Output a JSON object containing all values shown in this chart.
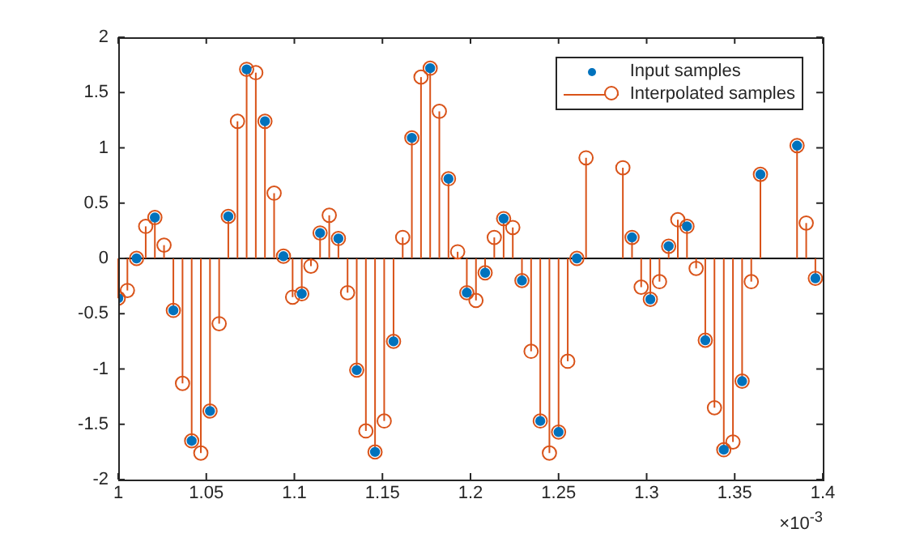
{
  "chart_data": {
    "type": "lollipop",
    "xlim": [
      1,
      1.4
    ],
    "xticks": [
      1,
      1.05,
      1.1,
      1.15,
      1.2,
      1.25,
      1.3,
      1.35,
      1.4
    ],
    "ylim": [
      -2,
      2
    ],
    "yticks": [
      -2,
      -1.5,
      -1,
      -0.5,
      0,
      0.5,
      1,
      1.5,
      2
    ],
    "legend": "top right",
    "marker": "circle",
    "annotations": [
      "×10$^{-3}$"
    ],
    "ref_lines": [
      {
        "axis": "y",
        "value": 0,
        "color": "#000000"
      }
    ],
    "series": [
      {
        "name": "Input samples",
        "type": "scatter",
        "color": "#0072bd",
        "x": [
          1,
          1.0104,
          1.0208,
          1.0313,
          1.0417,
          1.0521,
          1.0625,
          1.0729,
          1.0833,
          1.0938,
          1.1042,
          1.1146,
          1.125,
          1.1354,
          1.1458,
          1.1563,
          1.1667,
          1.1771,
          1.1875,
          1.1979,
          1.2083,
          1.2188,
          1.2292,
          1.2396,
          1.25,
          1.2604,
          1.2708,
          1.2813,
          1.2917,
          1.3021,
          1.3125,
          1.3229,
          1.3333,
          1.3438,
          1.3542,
          1.3646,
          1.375,
          1.3854,
          1.3958
        ],
        "values": [
          -0.36,
          0,
          0.37,
          -0.47,
          -1.65,
          -1.38,
          0.38,
          1.71,
          1.24,
          0.02,
          -0.32,
          0.23,
          0.18,
          -1.01,
          -1.75,
          -0.75,
          1.09,
          1.72,
          0.72,
          -0.31,
          -0.13,
          0.36,
          -0.2,
          -1.47,
          -1.57,
          0,
          null,
          null,
          0.19,
          -0.37,
          0.11,
          0.29,
          -0.74,
          -1.73,
          -1.11,
          0.76,
          null,
          1.02,
          -0.18
        ]
      },
      {
        "name": "Interpolated samples",
        "type": "lollipop",
        "color": "#d95319",
        "x": [
          1,
          1.0052,
          1.0104,
          1.0156,
          1.0208,
          1.026,
          1.0313,
          1.0365,
          1.0417,
          1.0469,
          1.0521,
          1.0573,
          1.0625,
          1.0677,
          1.0729,
          1.0781,
          1.0833,
          1.0885,
          1.0938,
          1.099,
          1.1042,
          1.1094,
          1.1146,
          1.1198,
          1.125,
          1.1302,
          1.1354,
          1.1406,
          1.1458,
          1.151,
          1.1563,
          1.1615,
          1.1667,
          1.1719,
          1.1771,
          1.1823,
          1.1875,
          1.1927,
          1.1979,
          1.2031,
          1.2083,
          1.2135,
          1.2188,
          1.224,
          1.2292,
          1.2344,
          1.2396,
          1.2448,
          1.25,
          1.2552,
          1.2604,
          1.2656,
          1.2708,
          1.276,
          1.2813,
          1.2865,
          1.2917,
          1.2969,
          1.3021,
          1.3073,
          1.3125,
          1.3177,
          1.3229,
          1.3281,
          1.3333,
          1.3385,
          1.3438,
          1.349,
          1.3542,
          1.3594,
          1.3646,
          1.3698,
          1.375,
          1.3802,
          1.3854,
          1.3906,
          1.3958
        ],
        "values": [
          -0.36,
          -0.29,
          0,
          0.29,
          0.37,
          0.12,
          -0.47,
          -1.13,
          -1.65,
          -1.76,
          -1.38,
          -0.59,
          0.38,
          1.24,
          1.71,
          1.68,
          1.24,
          0.59,
          0.02,
          -0.35,
          -0.32,
          -0.07,
          0.23,
          0.39,
          0.18,
          -0.31,
          -1.01,
          -1.56,
          -1.75,
          -1.47,
          -0.75,
          0.19,
          1.09,
          1.64,
          1.72,
          1.33,
          0.72,
          0.06,
          -0.31,
          -0.38,
          -0.13,
          0.19,
          0.36,
          0.28,
          -0.2,
          -0.84,
          -1.47,
          -1.76,
          -1.57,
          -0.93,
          0,
          0.91,
          null,
          null,
          null,
          0.82,
          0.19,
          -0.26,
          -0.37,
          -0.21,
          0.11,
          0.35,
          0.29,
          -0.09,
          -0.74,
          -1.35,
          -1.73,
          -1.66,
          -1.11,
          -0.21,
          0.76,
          null,
          null,
          null,
          1.02,
          0.32,
          -0.18
        ]
      }
    ]
  }
}
